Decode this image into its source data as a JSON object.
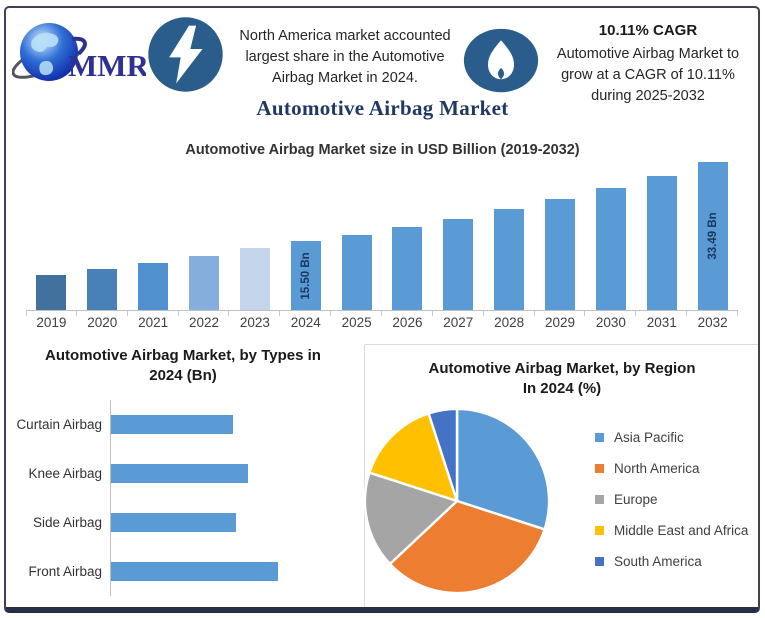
{
  "title": "Automotive Airbag Market",
  "header": {
    "logo_text": "MMR",
    "lightning_icon": "lightning-bolt",
    "flame_icon": "flame",
    "callout_left": {
      "lines": [
        "North America market accounted",
        "largest share in the Automotive",
        "Airbag Market in 2024."
      ]
    },
    "callout_right": {
      "headline": "10.11% CAGR",
      "lines": [
        "Automotive Airbag Market to",
        "grow at a CAGR of 10.11%",
        "during 2025-2032"
      ]
    }
  },
  "colors": {
    "primary_bar": "#5B9BD5",
    "title_navy": "#1F3864",
    "badge_blue": "#2B5D8C",
    "axis_gray": "#C0C0C0"
  },
  "chart_data": [
    {
      "type": "bar",
      "title": "Automotive Airbag Market size in USD Billion (2019-2032)",
      "categories": [
        "2019",
        "2020",
        "2021",
        "2022",
        "2023",
        "2024",
        "2025",
        "2026",
        "2027",
        "2028",
        "2029",
        "2030",
        "2031",
        "2032"
      ],
      "values": [
        8.0,
        9.3,
        10.7,
        12.3,
        14.1,
        15.5,
        17.07,
        18.79,
        20.69,
        22.78,
        25.08,
        27.62,
        30.41,
        33.49
      ],
      "values_estimated_except_labeled": true,
      "unit": "USD Bn",
      "xlabel": "",
      "ylabel": "",
      "ylim": [
        0,
        34
      ],
      "grid": false,
      "data_labels": {
        "2024": "15.50 Bn",
        "2032": "33.49 Bn"
      },
      "bar_colors": [
        "#41719C",
        "#4880B8",
        "#5090CE",
        "#85AEDE",
        "#C3D6EC",
        "#5B9BD5",
        "#5B9BD5",
        "#5B9BD5",
        "#5B9BD5",
        "#5B9BD5",
        "#5B9BD5",
        "#5B9BD5",
        "#5B9BD5",
        "#5B9BD5"
      ]
    },
    {
      "type": "bar",
      "orientation": "horizontal",
      "title": "Automotive Airbag Market, by Types in 2024 (Bn)",
      "title_line1": "Automotive Airbag Market, by Types in",
      "title_line2": "2024 (Bn)",
      "categories": [
        "Curtain Airbag",
        "Knee Airbag",
        "Side Airbag",
        "Front Airbag"
      ],
      "values": [
        3.43,
        3.85,
        3.52,
        4.7
      ],
      "values_estimated": true,
      "unit": "Bn",
      "grid": false,
      "bar_color": "#5B9BD5"
    },
    {
      "type": "pie",
      "title": "Automotive Airbag Market, by Region In 2024 (%)",
      "title_line1": "Automotive Airbag Market, by Region",
      "title_line2": "In 2024 (%)",
      "slices": [
        {
          "label": "Asia Pacific",
          "value": 30,
          "color": "#5B9BD5"
        },
        {
          "label": "North America",
          "value": 33,
          "color": "#ED7D31"
        },
        {
          "label": "Europe",
          "value": 17,
          "color": "#A5A5A5"
        },
        {
          "label": "Middle East and Africa",
          "value": 15,
          "color": "#FFC000"
        },
        {
          "label": "South America",
          "value": 5,
          "color": "#4472C4"
        }
      ],
      "values_estimated": true,
      "start_angle_deg": 0,
      "direction": "clockwise",
      "legend_position": "right"
    }
  ]
}
